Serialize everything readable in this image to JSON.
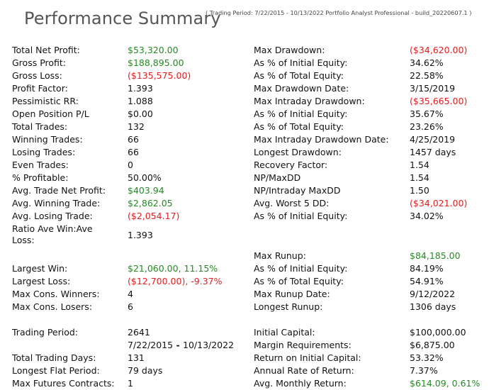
{
  "header": {
    "title": "Performance Summary",
    "subtitle": "( Trading Period: 7/22/2015 - 10/13/2022    Portfolio Analyst Professional - build_20220607.1 )"
  },
  "left": [
    {
      "label": "Total Net Profit:",
      "value": "$53,320.00",
      "tone": "pos"
    },
    {
      "label": "Gross Profit:",
      "value": "$188,895.00",
      "tone": "pos"
    },
    {
      "label": "Gross Loss:",
      "value": "($135,575.00)",
      "tone": "neg"
    },
    {
      "label": "Profit Factor:",
      "value": "1.393",
      "tone": "neutral"
    },
    {
      "label": "Pessimistic RR:",
      "value": "1.088",
      "tone": "neutral"
    },
    {
      "label": "Open Position P/L",
      "value": "$0.00",
      "tone": "neutral"
    },
    {
      "label": "Total Trades:",
      "value": "132",
      "tone": "neutral"
    },
    {
      "label": "Winning Trades:",
      "value": "66",
      "tone": "neutral"
    },
    {
      "label": "Losing Trades:",
      "value": "66",
      "tone": "neutral"
    },
    {
      "label": "Even Trades:",
      "value": "0",
      "tone": "neutral"
    },
    {
      "label": "% Profitable:",
      "value": "50.00%",
      "tone": "neutral"
    },
    {
      "label": "Avg. Trade Net Profit:",
      "value": "$403.94",
      "tone": "pos"
    },
    {
      "label": "Avg. Winning Trade:",
      "value": "$2,862.05",
      "tone": "pos"
    },
    {
      "label": "Avg. Losing Trade:",
      "value": "($2,054.17)",
      "tone": "neg"
    },
    {
      "label": "Ratio Ave Win:Ave Loss:",
      "value": "1.393",
      "tone": "neutral",
      "multiline": true
    },
    {
      "label": "Largest Win:",
      "value": "$21,060.00, 11.15%",
      "tone": "pos"
    },
    {
      "label": "Largest Loss:",
      "value": "($12,700.00), -9.37%",
      "tone": "neg"
    },
    {
      "label": "Max Cons. Winners:",
      "value": "4",
      "tone": "neutral"
    },
    {
      "label": "Max Cons. Losers:",
      "value": "6",
      "tone": "neutral"
    },
    {
      "label": "Trading Period:",
      "value": "2641",
      "tone": "neutral"
    },
    {
      "label": "",
      "value_start": "7/22/2015",
      "value_sep": " - ",
      "value_end": "10/13/2022",
      "tone": "neutral",
      "is_date_range": true
    },
    {
      "label": "Total Trading Days:",
      "value": "131",
      "tone": "neutral"
    },
    {
      "label": "Longest Flat Period:",
      "value": "79 days",
      "tone": "neutral"
    },
    {
      "label": "Max Futures Contracts:",
      "value": "1",
      "tone": "neutral"
    }
  ],
  "right": [
    {
      "label": "Max Drawdown:",
      "value": "($34,620.00)",
      "tone": "neg"
    },
    {
      "label": "As % of Initial Equity:",
      "value": "34.62%",
      "tone": "neutral"
    },
    {
      "label": "As % of Total Equity:",
      "value": "22.58%",
      "tone": "neutral"
    },
    {
      "label": "Max Drawdown Date:",
      "value": "3/15/2019",
      "tone": "neutral"
    },
    {
      "label": "Max Intraday Drawdown:",
      "value": "($35,665.00)",
      "tone": "neg"
    },
    {
      "label": "As % of Initial Equity:",
      "value": "35.67%",
      "tone": "neutral"
    },
    {
      "label": "As % of Total Equity:",
      "value": "23.26%",
      "tone": "neutral"
    },
    {
      "label": "Max Intraday Drawdown Date:",
      "value": "4/25/2019",
      "tone": "neutral"
    },
    {
      "label": "Longest Drawdown:",
      "value": "1457 days",
      "tone": "neutral"
    },
    {
      "label": "Recovery Factor:",
      "value": "1.54",
      "tone": "neutral"
    },
    {
      "label": "NP/MaxDD",
      "value": "1.54",
      "tone": "neutral"
    },
    {
      "label": "NP/Intraday MaxDD",
      "value": "1.50",
      "tone": "neutral"
    },
    {
      "label": "Avg. Worst 5 DD:",
      "value": "($34,021.00)",
      "tone": "neg"
    },
    {
      "label": "As % of Initial Equity:",
      "value": "34.02%",
      "tone": "neutral"
    },
    {
      "label": "Max Runup:",
      "value": "$84,185.00",
      "tone": "pos"
    },
    {
      "label": "As % of Initial Equity:",
      "value": "84.19%",
      "tone": "neutral"
    },
    {
      "label": "As % of Total Equity:",
      "value": "54.91%",
      "tone": "neutral"
    },
    {
      "label": "Max Runup Date:",
      "value": "9/12/2022",
      "tone": "neutral"
    },
    {
      "label": "Longest Runup:",
      "value": "1306 days",
      "tone": "neutral"
    },
    {
      "label": "Initial Capital:",
      "value": "$100,000.00",
      "tone": "neutral"
    },
    {
      "label": "Margin Requirements:",
      "value": "$6,875.00",
      "tone": "neutral"
    },
    {
      "label": "Return on Initial Capital:",
      "value": "53.32%",
      "tone": "neutral"
    },
    {
      "label": "Annual Rate of Return:",
      "value": "7.37%",
      "tone": "neutral"
    },
    {
      "label": "Avg. Monthly Return:",
      "value": "$614.09, 0.61%",
      "tone": "pos"
    }
  ]
}
